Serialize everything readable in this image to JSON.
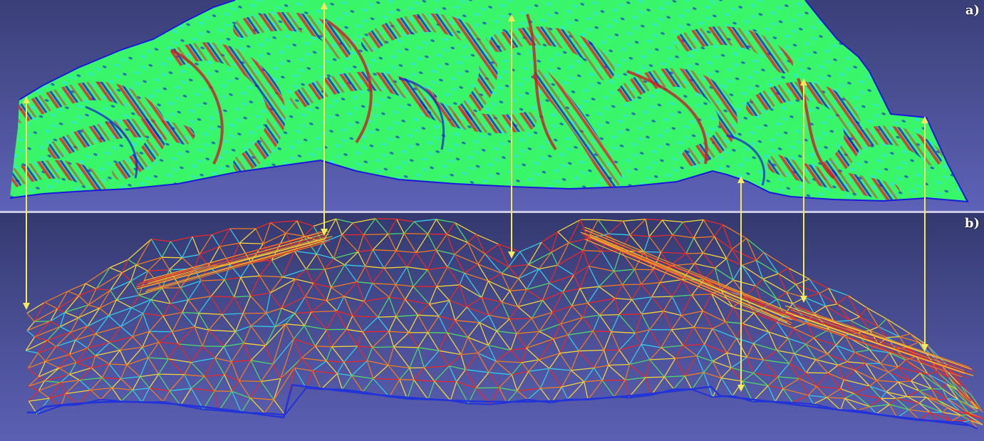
{
  "panels": {
    "a": {
      "label": "a)"
    },
    "b": {
      "label": "b)"
    }
  },
  "colors": {
    "background_top": "#3a3f78",
    "background_bottom": "#5e62b8",
    "surface_base": "#39f56a",
    "surface_cyan": "#2ee8d8",
    "surface_red": "#e8222a",
    "surface_blue": "#1a1ad8",
    "mesh_red": "#e8282a",
    "mesh_orange": "#f07a22",
    "mesh_yellow": "#f2d23a",
    "mesh_green": "#4ed66a",
    "mesh_cyan": "#33c9e8",
    "mesh_blue": "#2233d8",
    "arrow": "#f2ea5a"
  },
  "icons": {
    "arrow": "double-headed-arrow"
  }
}
